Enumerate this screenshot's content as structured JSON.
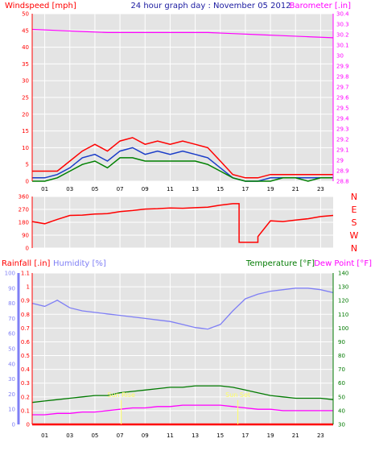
{
  "colors": {
    "wind_red": "#ff0000",
    "wind_blue": "#1a3cc8",
    "wind_green": "#008000",
    "baro": "#ff00ff",
    "title": "#1a1aa0",
    "humidity": "#7f7ff5",
    "temperature": "#007a00",
    "dewpoint": "#ff00ff",
    "rain": "#ff0000",
    "sun": "#ffff66",
    "grid": "#ffffff",
    "panel_bg": "#e4e4e4",
    "page_bg": "#ffffff"
  },
  "x_ticks": [
    "01",
    "03",
    "05",
    "07",
    "09",
    "11",
    "13",
    "15",
    "17",
    "19",
    "21",
    "23"
  ],
  "chart_data": [
    {
      "type": "line",
      "title": "24 hour graph day : November 05 2012",
      "ylabel": "Windspeed [mph]",
      "y2label": "Barometer [.in]",
      "ylim": [
        0,
        50
      ],
      "y_ticks": [
        0,
        5,
        10,
        15,
        20,
        25,
        30,
        35,
        40,
        45,
        50
      ],
      "y2lim": [
        28.8,
        30.4
      ],
      "y2_ticks": [
        "28.8",
        "28.9",
        "29",
        "29.1",
        "29.2",
        "29.3",
        "29.4",
        "29.5",
        "29.6",
        "29.7",
        "29.8",
        "29.9",
        "30",
        "30.1",
        "30.2",
        "30.3",
        "30.4"
      ],
      "xlim": [
        0,
        24
      ],
      "grid": true,
      "series": [
        {
          "axis": "y2",
          "x": [
            0,
            2,
            4,
            6,
            8,
            10,
            12,
            14,
            16,
            18,
            20,
            22,
            24
          ],
          "values": [
            30.25,
            30.24,
            30.23,
            30.22,
            30.22,
            30.22,
            30.22,
            30.22,
            30.21,
            30.2,
            30.19,
            30.18,
            30.17
          ]
        },
        {
          "axis": "y",
          "x": [
            0,
            1,
            2,
            3,
            4,
            5,
            6,
            7,
            8,
            9,
            10,
            11,
            12,
            13,
            14,
            15,
            16,
            17,
            18,
            19,
            20,
            21,
            22,
            23,
            24
          ],
          "values": [
            3,
            3,
            3,
            6,
            9,
            11,
            9,
            12,
            13,
            11,
            12,
            11,
            12,
            11,
            10,
            6,
            2,
            1,
            1,
            2,
            2,
            2,
            2,
            2,
            2
          ]
        },
        {
          "axis": "y",
          "x": [
            0,
            1,
            2,
            3,
            4,
            5,
            6,
            7,
            8,
            9,
            10,
            11,
            12,
            13,
            14,
            15,
            16,
            17,
            18,
            19,
            20,
            21,
            22,
            23,
            24
          ],
          "values": [
            1,
            1,
            2,
            4,
            7,
            8,
            6,
            9,
            10,
            8,
            9,
            8,
            9,
            8,
            7,
            4,
            1,
            0,
            0,
            1,
            1,
            1,
            1,
            1,
            1
          ]
        },
        {
          "axis": "y",
          "x": [
            0,
            1,
            2,
            3,
            4,
            5,
            6,
            7,
            8,
            9,
            10,
            11,
            12,
            13,
            14,
            15,
            16,
            17,
            18,
            19,
            20,
            21,
            22,
            23,
            24
          ],
          "values": [
            0,
            0,
            1,
            3,
            5,
            6,
            4,
            7,
            7,
            6,
            6,
            6,
            6,
            6,
            5,
            3,
            1,
            0,
            0,
            0,
            1,
            1,
            0,
            1,
            1
          ]
        }
      ]
    },
    {
      "type": "line",
      "ylabel": "",
      "y_ticks": [
        "0",
        "90",
        "180",
        "270",
        "360"
      ],
      "y2_ticks": [
        "N",
        "W",
        "S",
        "E",
        "N"
      ],
      "ylim": [
        0,
        360
      ],
      "xlim": [
        0,
        24
      ],
      "grid": true,
      "series": [
        {
          "x": [
            0,
            1,
            2,
            3,
            4,
            5,
            6,
            7,
            8,
            9,
            10,
            11,
            12,
            13,
            14,
            15,
            16,
            16.5,
            16.5,
            18,
            18,
            19,
            20,
            21,
            22,
            23,
            24
          ],
          "values": [
            185,
            170,
            200,
            228,
            230,
            238,
            240,
            255,
            262,
            272,
            275,
            280,
            278,
            282,
            286,
            300,
            310,
            310,
            40,
            40,
            80,
            190,
            185,
            195,
            205,
            220,
            228
          ]
        }
      ]
    },
    {
      "type": "line",
      "ylabel": "Rainfall [.in]",
      "y2label_left": "Humidity [%]",
      "y3label": "Temperature [°F]",
      "y4label": "Dew Point [°F]",
      "rain_ticks": [
        "0",
        "0.1",
        "0.2",
        "0.3",
        "0.4",
        "0.5",
        "0.6",
        "0.7",
        "0.8",
        "0.9",
        "1",
        "1.1"
      ],
      "humidity_ticks": [
        "0",
        "10",
        "20",
        "30",
        "40",
        "50",
        "60",
        "70",
        "80",
        "90",
        "100"
      ],
      "temp_ticks": [
        "30",
        "40",
        "50",
        "60",
        "70",
        "80",
        "90",
        "100",
        "110",
        "120",
        "130",
        "140"
      ],
      "rain_lim": [
        0,
        1.1
      ],
      "humidity_lim": [
        0,
        100
      ],
      "temp_lim": [
        30,
        140
      ],
      "xlim": [
        0,
        24
      ],
      "grid": true,
      "annotations": [
        {
          "x": 7.1,
          "y": 50,
          "text": "Sun Rise"
        },
        {
          "x": 16.4,
          "y": 50,
          "text": "Sun Set"
        }
      ],
      "series": [
        {
          "axis": "humidity",
          "x": [
            0,
            1,
            2,
            3,
            4,
            5,
            6,
            7,
            8,
            9,
            10,
            11,
            12,
            13,
            14,
            15,
            16,
            17,
            18,
            19,
            20,
            21,
            22,
            23,
            24
          ],
          "values": [
            80,
            78,
            82,
            77,
            75,
            74,
            73,
            72,
            71,
            70,
            69,
            68,
            66,
            64,
            63,
            66,
            75,
            83,
            86,
            88,
            89,
            90,
            90,
            89,
            87
          ]
        },
        {
          "axis": "temp",
          "x": [
            0,
            1,
            2,
            3,
            4,
            5,
            6,
            7,
            8,
            9,
            10,
            11,
            12,
            13,
            14,
            15,
            16,
            17,
            18,
            19,
            20,
            21,
            22,
            23,
            24
          ],
          "values": [
            46,
            47,
            48,
            49,
            50,
            51,
            51,
            53,
            54,
            55,
            56,
            57,
            57,
            58,
            58,
            58,
            57,
            55,
            53,
            51,
            50,
            49,
            49,
            49,
            48
          ]
        },
        {
          "axis": "temp",
          "x": [
            0,
            1,
            2,
            3,
            4,
            5,
            6,
            7,
            8,
            9,
            10,
            11,
            12,
            13,
            14,
            15,
            16,
            17,
            18,
            19,
            20,
            21,
            22,
            23,
            24
          ],
          "values": [
            37,
            37,
            38,
            38,
            39,
            39,
            40,
            41,
            42,
            42,
            43,
            43,
            44,
            44,
            44,
            44,
            43,
            42,
            41,
            41,
            40,
            40,
            40,
            40,
            40
          ]
        },
        {
          "axis": "rain",
          "x": [
            0,
            24
          ],
          "values": [
            0,
            0
          ]
        }
      ]
    }
  ]
}
